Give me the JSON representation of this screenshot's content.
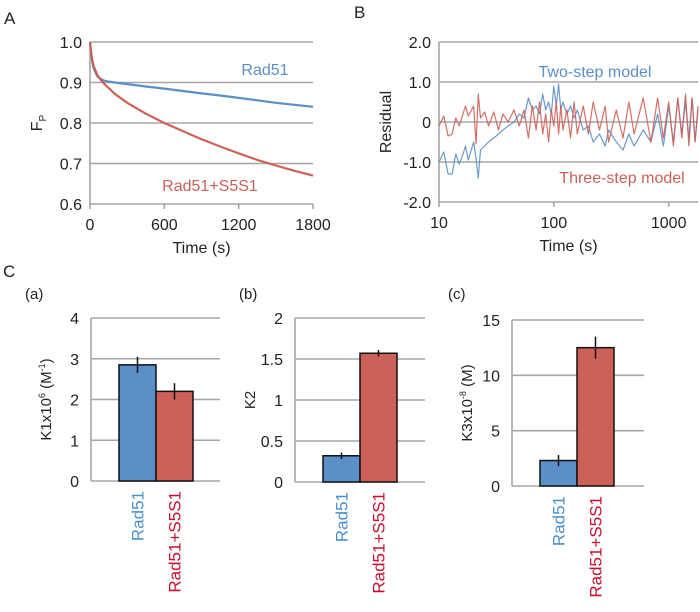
{
  "panel_labels": {
    "A": "A",
    "B": "B",
    "C": "C"
  },
  "colors": {
    "rad51": "#5b8fc7",
    "s5s1": "#cd6158",
    "rad51_label": "#4a8fd0",
    "s5s1_label": "#c8102e",
    "grid": "#a6a6a6"
  },
  "chart_data": [
    {
      "id": "A",
      "type": "line",
      "xlabel": "Time (s)",
      "ylabel": "F",
      "ylabel_sub": "P",
      "xlim": [
        0,
        1800
      ],
      "ylim": [
        0.6,
        1.0
      ],
      "xticks": [
        "0",
        "600",
        "1200",
        "1800"
      ],
      "yticks": [
        "0.6",
        "0.7",
        "0.8",
        "0.9",
        "1.0"
      ],
      "grid": "horizontal",
      "series": [
        {
          "name": "Rad51",
          "color": "#5b8fc7",
          "x": [
            0,
            15,
            30,
            60,
            90,
            120,
            200,
            300,
            450,
            600,
            750,
            900,
            1050,
            1200,
            1350,
            1500,
            1650,
            1800
          ],
          "y": [
            1.0,
            0.955,
            0.935,
            0.915,
            0.908,
            0.904,
            0.9,
            0.896,
            0.89,
            0.885,
            0.879,
            0.873,
            0.868,
            0.862,
            0.856,
            0.85,
            0.845,
            0.84
          ]
        },
        {
          "name": "Rad51+S5S1",
          "color": "#cd6158",
          "x": [
            0,
            15,
            30,
            60,
            90,
            120,
            200,
            300,
            450,
            600,
            750,
            900,
            1050,
            1200,
            1350,
            1500,
            1650,
            1800
          ],
          "y": [
            1.0,
            0.96,
            0.94,
            0.918,
            0.905,
            0.895,
            0.872,
            0.85,
            0.823,
            0.8,
            0.78,
            0.76,
            0.742,
            0.725,
            0.709,
            0.695,
            0.682,
            0.67
          ]
        }
      ]
    },
    {
      "id": "B",
      "type": "line",
      "xlabel": "Time (s)",
      "ylabel": "Residual",
      "xscale": "log",
      "xlim": [
        10,
        1800
      ],
      "ylim": [
        -2.0,
        2.0
      ],
      "xticks": [
        "10",
        "100",
        "1000"
      ],
      "yticks": [
        "-2.0",
        "-1.0",
        "0",
        "1.0",
        "2.0"
      ],
      "grid": "horizontal",
      "series": [
        {
          "name": "Two-step model",
          "color": "#5b8fc7",
          "x": [
            10,
            11,
            12,
            13,
            14,
            15,
            16,
            17,
            18,
            20,
            21,
            22,
            23,
            25,
            27,
            30,
            33,
            36,
            40,
            45,
            50,
            55,
            60,
            65,
            70,
            75,
            80,
            85,
            90,
            95,
            100,
            105,
            110,
            115,
            120,
            130,
            140,
            150,
            160,
            180,
            200,
            220,
            250,
            280,
            300,
            350,
            400,
            450,
            500,
            600,
            700,
            800,
            900,
            1000,
            1100,
            1200,
            1300,
            1400,
            1500,
            1600,
            1700,
            1800
          ],
          "y": [
            -1.0,
            -0.75,
            -1.3,
            -1.3,
            -0.8,
            -1.05,
            -0.85,
            -0.6,
            -0.95,
            -0.5,
            -0.9,
            -1.4,
            -0.7,
            -0.6,
            -0.5,
            -0.4,
            -0.3,
            -0.2,
            -0.1,
            0.0,
            0.2,
            0.1,
            0.6,
            0.3,
            0.4,
            0.2,
            0.7,
            0.3,
            0.5,
            0.2,
            0.9,
            0.4,
            0.95,
            0.3,
            0.5,
            0.2,
            0.4,
            0.1,
            0.3,
            -0.2,
            -0.1,
            -0.5,
            -0.3,
            -0.6,
            -0.2,
            -0.5,
            -0.7,
            -0.3,
            -0.6,
            -0.2,
            -0.5,
            0.2,
            -0.6,
            0.4,
            -0.5,
            0.6,
            -0.3,
            0.5,
            -0.4,
            0.6,
            -0.5,
            0.3
          ]
        },
        {
          "name": "Three-step model",
          "color": "#cd6158",
          "x": [
            10,
            11,
            12,
            13,
            14,
            15,
            17,
            18,
            20,
            21,
            22,
            23,
            25,
            27,
            30,
            33,
            36,
            40,
            45,
            50,
            55,
            60,
            65,
            70,
            75,
            80,
            85,
            90,
            95,
            100,
            105,
            110,
            115,
            120,
            130,
            140,
            150,
            160,
            180,
            200,
            220,
            250,
            280,
            300,
            350,
            400,
            450,
            500,
            600,
            700,
            800,
            900,
            1000,
            1100,
            1200,
            1300,
            1400,
            1500,
            1600,
            1700,
            1800
          ],
          "y": [
            -0.1,
            0.15,
            -0.35,
            -0.3,
            0.1,
            -0.1,
            0.4,
            0.15,
            0.4,
            -0.55,
            0.7,
            0.1,
            0.25,
            -0.1,
            0.25,
            -0.2,
            0.2,
            0.0,
            0.3,
            -0.1,
            0.3,
            -0.4,
            0.4,
            -0.2,
            0.5,
            -0.3,
            0.2,
            -0.5,
            0.3,
            -0.1,
            0.5,
            -0.3,
            0.4,
            -0.2,
            0.3,
            -0.4,
            0.5,
            -0.3,
            0.4,
            -0.3,
            0.5,
            -0.2,
            0.4,
            -0.5,
            0.3,
            -0.4,
            0.5,
            -0.3,
            0.6,
            -0.5,
            0.6,
            -0.4,
            0.5,
            -0.6,
            0.6,
            -0.4,
            0.7,
            -0.6,
            0.6,
            -0.5,
            0.4
          ]
        }
      ]
    },
    {
      "id": "C-a",
      "subtitle": "(a)",
      "type": "bar",
      "ylabel": "K1x10",
      "ylabel_sup": "6",
      "ylabel_unit": " (M",
      "ylabel_unit_sup": "-1",
      "ylabel_end": ")",
      "categories": [
        "Rad51",
        "Rad51+S5S1"
      ],
      "values": [
        2.85,
        2.2
      ],
      "errors": [
        0.2,
        0.2
      ],
      "ylim": [
        0,
        4
      ],
      "yticks": [
        "0",
        "1",
        "2",
        "3",
        "4"
      ]
    },
    {
      "id": "C-b",
      "subtitle": "(b)",
      "type": "bar",
      "ylabel": "K2",
      "categories": [
        "Rad51",
        "Rad51+S5S1"
      ],
      "values": [
        0.32,
        1.57
      ],
      "errors": [
        0.04,
        0.04
      ],
      "ylim": [
        0,
        2
      ],
      "yticks": [
        "0",
        "0.5",
        "1",
        "1.5",
        "2"
      ]
    },
    {
      "id": "C-c",
      "subtitle": "(c)",
      "type": "bar",
      "ylabel": "K3x10",
      "ylabel_sup": "-8",
      "ylabel_unit": " (M)",
      "categories": [
        "Rad51",
        "Rad51+S5S1"
      ],
      "values": [
        2.3,
        12.5
      ],
      "errors": [
        0.5,
        1.0
      ],
      "ylim": [
        0,
        15
      ],
      "yticks": [
        "0",
        "5",
        "10",
        "15"
      ]
    }
  ]
}
